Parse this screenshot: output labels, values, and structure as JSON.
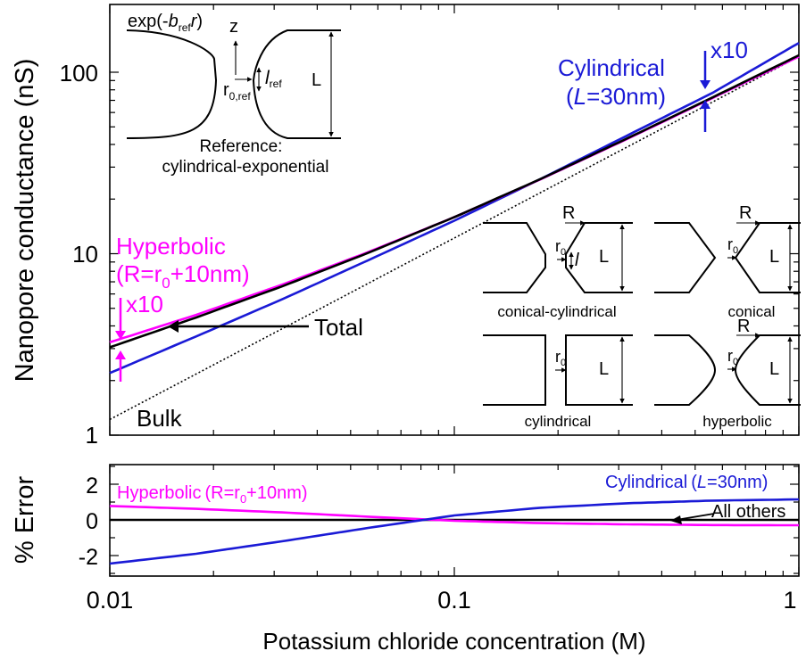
{
  "colors": {
    "total": "#000000",
    "hyperbolic": "#ff00ff",
    "cylindrical": "#1a1ad6",
    "bulk": "#000000"
  },
  "chart_data": [
    {
      "type": "line",
      "ylabel": "Nanopore conductance (nS)",
      "xlabel": "Potassium chloride concentration (M)",
      "xscale": "log",
      "yscale": "log",
      "xlim": [
        0.01,
        1
      ],
      "ylim": [
        1,
        180
      ],
      "x_ticks": [
        "0.01",
        "0.1",
        "1"
      ],
      "y_ticks": [
        "1",
        "10",
        "100"
      ],
      "series": [
        {
          "id": "bulk",
          "style": "dotted",
          "x": [
            0.01,
            1
          ],
          "y": [
            1.22,
            122
          ]
        },
        {
          "id": "total",
          "x": [
            0.01,
            0.0178,
            0.0316,
            0.0562,
            0.1,
            0.178,
            0.316,
            0.562,
            1
          ],
          "y": [
            3.05,
            4.45,
            6.6,
            10.1,
            15.9,
            25.8,
            43.0,
            72.7,
            124
          ]
        },
        {
          "id": "hyperbolic",
          "x": [
            0.01,
            0.0178,
            0.0316,
            0.0562,
            0.1,
            0.178,
            0.316,
            0.562,
            1
          ],
          "y": [
            3.25,
            4.6,
            6.75,
            10.2,
            15.9,
            25.7,
            42.7,
            72.1,
            122
          ]
        },
        {
          "id": "cylindrical",
          "x": [
            0.01,
            0.0178,
            0.0316,
            0.0562,
            0.1,
            0.178,
            0.316,
            0.562,
            1
          ],
          "y": [
            2.2,
            3.5,
            5.6,
            9.2,
            15.2,
            25.8,
            44.6,
            77.0,
            145
          ]
        }
      ],
      "annotations": {
        "cyl_label_1": "Cylindrical",
        "cyl_label_2a": "(",
        "cyl_label_2b": "L",
        "cyl_label_2c": "=30nm)",
        "x10_top": "x10",
        "x10_left": "x10",
        "hyp_label_1": "Hyperbolic",
        "hyp_label_2a": "(R=r",
        "hyp_label_2sub": "0",
        "hyp_label_2b": "+10nm)",
        "total": "Total",
        "bulk": "Bulk"
      },
      "inset_reference": {
        "exp_a": "exp(-",
        "exp_b": "b",
        "exp_sub": "ref",
        "exp_c": "r",
        "exp_d": ")",
        "z": "z",
        "l": "l",
        "l_sub": "ref",
        "L": "L",
        "r0": "r",
        "r0_sub": "0,ref",
        "caption_1": "Reference:",
        "caption_2": "cylindrical-exponential"
      },
      "inset_shapes": {
        "R": "R",
        "L": "L",
        "r0": "r",
        "r0_sub": "0",
        "l": "l",
        "conical_cylindrical": "conical-cylindrical",
        "conical": "conical",
        "cylindrical": "cylindrical",
        "hyperbolic": "hyperbolic"
      }
    },
    {
      "type": "line",
      "ylabel": "% Error",
      "xscale": "log",
      "xlim": [
        0.01,
        1
      ],
      "ylim": [
        -3,
        3
      ],
      "y_ticks": [
        "2",
        "0",
        "-2"
      ],
      "series": [
        {
          "id": "all_others",
          "x": [
            0.01,
            1
          ],
          "y": [
            0,
            0
          ]
        },
        {
          "id": "hyperbolic",
          "x": [
            0.01,
            0.0178,
            0.0316,
            0.0562,
            0.1,
            0.178,
            0.316,
            0.562,
            1
          ],
          "y": [
            0.78,
            0.62,
            0.42,
            0.18,
            -0.05,
            -0.18,
            -0.25,
            -0.29,
            -0.3
          ]
        },
        {
          "id": "cylindrical",
          "x": [
            0.01,
            0.0178,
            0.0316,
            0.0562,
            0.1,
            0.178,
            0.316,
            0.562,
            1
          ],
          "y": [
            -2.45,
            -1.9,
            -1.2,
            -0.45,
            0.25,
            0.68,
            0.93,
            1.08,
            1.15
          ]
        }
      ],
      "annotations": {
        "hyp_a": "Hyperbolic",
        "hyp_b": "(R=r",
        "hyp_sub": "0",
        "hyp_c": "+10nm)",
        "cyl_a": "Cylindrical",
        "cyl_b": "(",
        "cyl_c": "L",
        "cyl_d": "=30nm)",
        "all_others": "All others"
      }
    }
  ]
}
